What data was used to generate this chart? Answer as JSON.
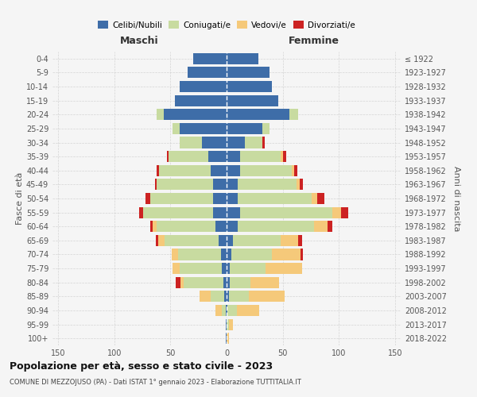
{
  "age_groups": [
    "0-4",
    "5-9",
    "10-14",
    "15-19",
    "20-24",
    "25-29",
    "30-34",
    "35-39",
    "40-44",
    "45-49",
    "50-54",
    "55-59",
    "60-64",
    "65-69",
    "70-74",
    "75-79",
    "80-84",
    "85-89",
    "90-94",
    "95-99",
    "100+"
  ],
  "birth_years": [
    "2018-2022",
    "2013-2017",
    "2008-2012",
    "2003-2007",
    "1998-2002",
    "1993-1997",
    "1988-1992",
    "1983-1987",
    "1978-1982",
    "1973-1977",
    "1968-1972",
    "1963-1967",
    "1958-1962",
    "1953-1957",
    "1948-1952",
    "1943-1947",
    "1938-1942",
    "1933-1937",
    "1928-1932",
    "1923-1927",
    "≤ 1922"
  ],
  "colors": {
    "celibi": "#3e6da8",
    "coniugati": "#c8dba0",
    "vedovi": "#f5c97a",
    "divorziati": "#cc2222"
  },
  "male_celibi": [
    30,
    35,
    42,
    46,
    56,
    42,
    22,
    16,
    14,
    12,
    12,
    12,
    10,
    7,
    5,
    4,
    3,
    2,
    1,
    1,
    1
  ],
  "male_coniugati": [
    0,
    0,
    0,
    0,
    6,
    6,
    20,
    36,
    46,
    50,
    56,
    62,
    52,
    48,
    38,
    38,
    35,
    12,
    3,
    0,
    0
  ],
  "male_vedovi": [
    0,
    0,
    0,
    0,
    0,
    0,
    0,
    0,
    0,
    0,
    0,
    0,
    4,
    6,
    6,
    6,
    3,
    10,
    6,
    0,
    0
  ],
  "male_divorziati": [
    0,
    0,
    0,
    0,
    0,
    0,
    0,
    1,
    2,
    2,
    4,
    4,
    2,
    2,
    0,
    0,
    4,
    0,
    0,
    0,
    0
  ],
  "female_celibi": [
    28,
    38,
    40,
    46,
    56,
    32,
    16,
    12,
    12,
    10,
    10,
    12,
    10,
    6,
    4,
    3,
    3,
    2,
    1,
    0,
    0
  ],
  "female_coniugati": [
    0,
    0,
    0,
    0,
    8,
    6,
    16,
    36,
    46,
    52,
    66,
    82,
    68,
    42,
    36,
    32,
    18,
    18,
    8,
    2,
    0
  ],
  "female_vedovi": [
    0,
    0,
    0,
    0,
    0,
    0,
    0,
    2,
    2,
    3,
    5,
    8,
    12,
    16,
    26,
    32,
    26,
    32,
    20,
    4,
    2
  ],
  "female_divorziati": [
    0,
    0,
    0,
    0,
    0,
    0,
    2,
    3,
    3,
    3,
    6,
    6,
    4,
    3,
    2,
    0,
    0,
    0,
    0,
    0,
    0
  ],
  "title": "Popolazione per età, sesso e stato civile - 2023",
  "subtitle": "COMUNE DI MEZZOJUSO (PA) - Dati ISTAT 1° gennaio 2023 - Elaborazione TUTTITALIA.IT",
  "label_maschi": "Maschi",
  "label_femmine": "Femmine",
  "ylabel_left": "Fasce di età",
  "ylabel_right": "Anni di nascita",
  "legend_labels": [
    "Celibi/Nubili",
    "Coniugati/e",
    "Vedovi/e",
    "Divorziati/e"
  ],
  "bg_color": "#f5f5f5",
  "grid_color": "#cccccc",
  "xlim": 155
}
